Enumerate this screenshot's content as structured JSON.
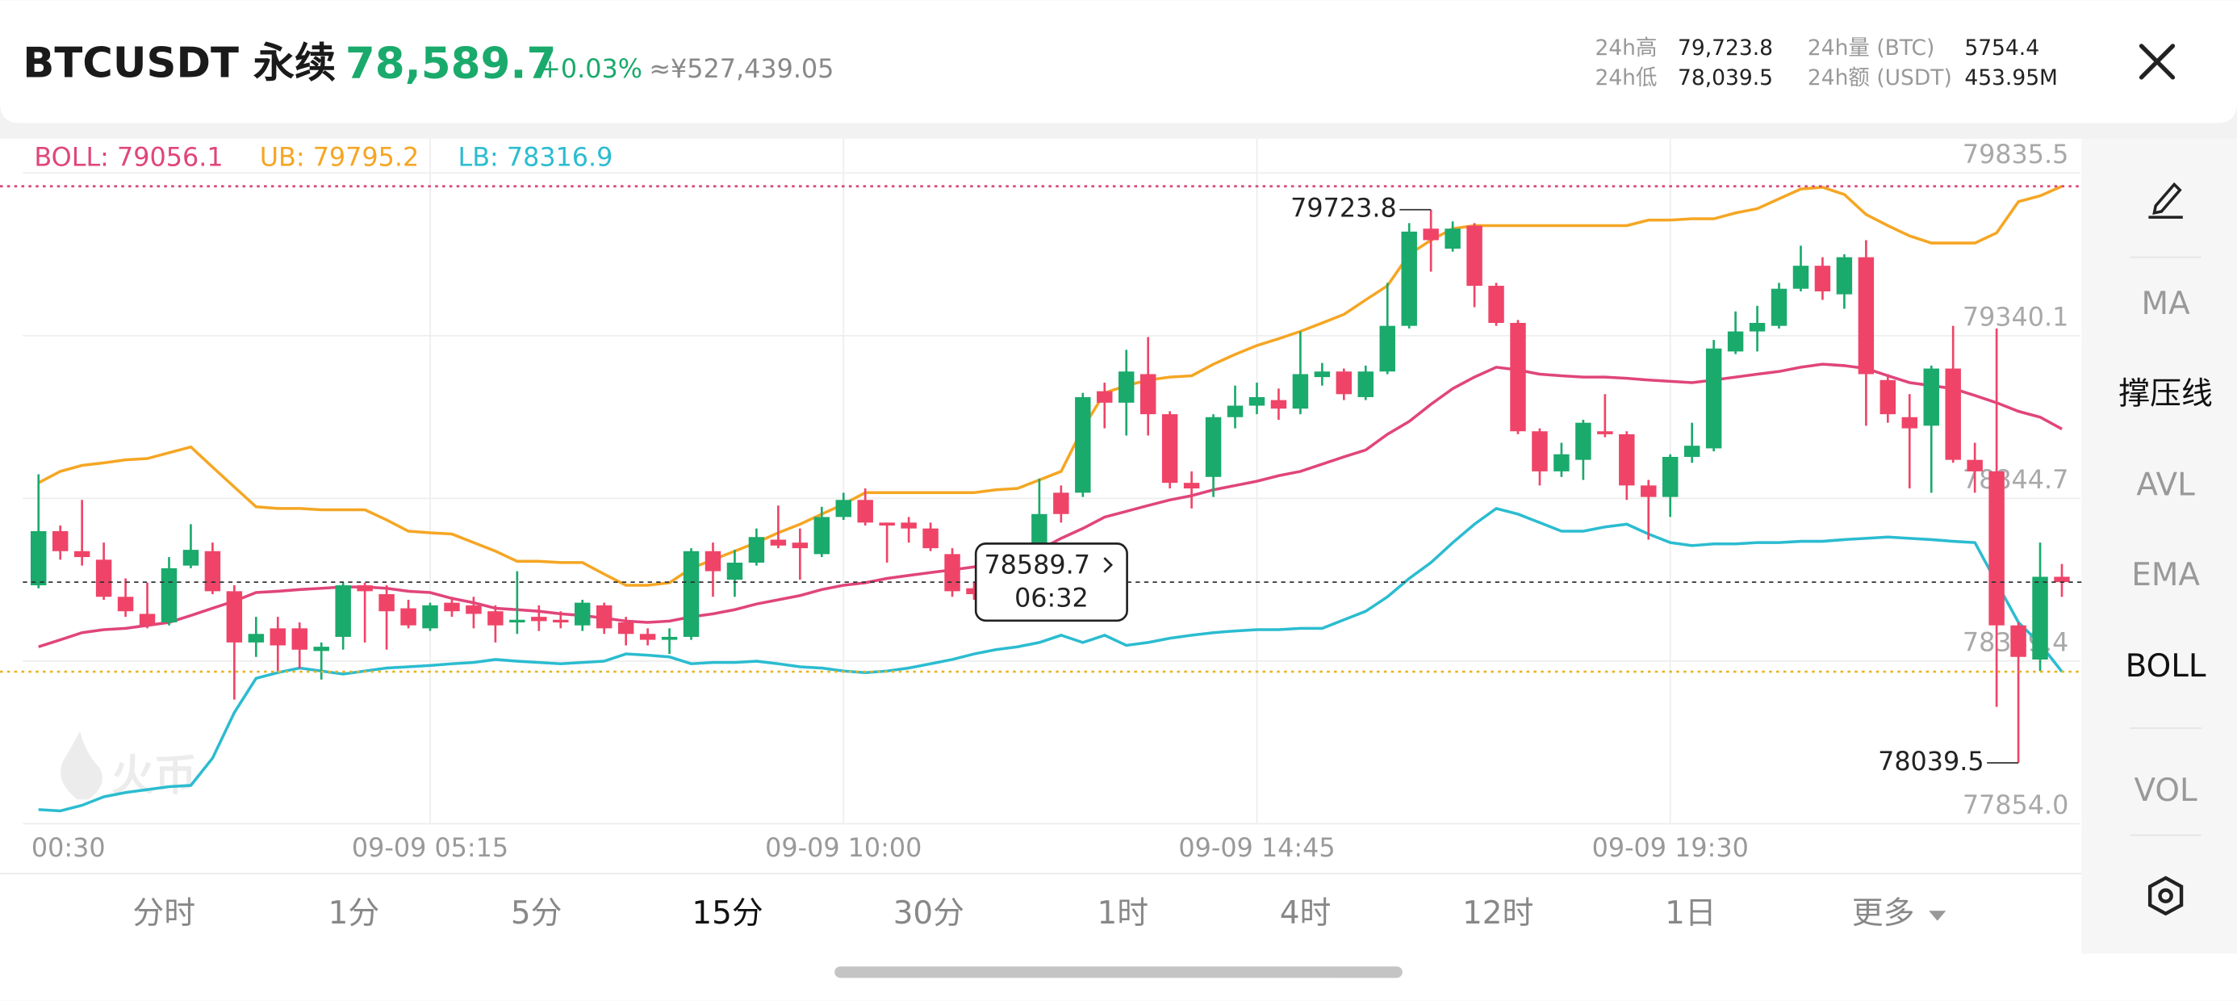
{
  "header": {
    "symbol": "BTCUSDT 永续",
    "price": "78,589.7",
    "change": "+0.03%",
    "cny": "≈¥527,439.05",
    "stats": [
      {
        "label": "24h高",
        "value": "79,723.8"
      },
      {
        "label": "24h低",
        "value": "78,039.5"
      },
      {
        "label": "24h量 (BTC)",
        "value": "5754.4"
      },
      {
        "label": "24h额 (USDT)",
        "value": "453.95M"
      }
    ]
  },
  "chart_data": {
    "type": "candlestick",
    "watermark": "火币",
    "up_color": "#1aaa6c",
    "down_color": "#ef4468",
    "ylim": [
      77854,
      79835.5
    ],
    "yticks": [
      {
        "value": 77854,
        "label": "77854.0"
      },
      78349.4,
      78844.7,
      79340.1,
      79835.5
    ],
    "grid": true,
    "time_labels": [
      "00:30",
      "09-09 05:15",
      "09-09 10:00",
      "09-09 14:45",
      "09-09 19:30"
    ],
    "countdown": "06:32",
    "open": [
      78580,
      78745,
      78684,
      78658,
      78545,
      78493,
      78467,
      78640,
      78684,
      78562,
      78406,
      78449,
      78449,
      78380,
      78423,
      78580,
      78553,
      78510,
      78449,
      78527,
      78519,
      78501,
      78467,
      78484,
      78475,
      78458,
      78519,
      78467,
      78432,
      78414,
      78423,
      78684,
      78597,
      78649,
      78719,
      78710,
      78675,
      78788,
      78840,
      78771,
      78771,
      78753,
      78675,
      78571,
      78553,
      78601,
      78666,
      78862,
      78862,
      79171,
      79136,
      79223,
      79101,
      78892,
      78910,
      79092,
      79127,
      79144,
      79118,
      79214,
      79231,
      79153,
      79231,
      79370,
      79666,
      79605,
      79675,
      79492,
      79379,
      79049,
      78927,
      78962,
      79049,
      79040,
      78884,
      78849,
      78971,
      78997,
      79292,
      79353,
      79370,
      79483,
      79553,
      79466,
      79579,
      79205,
      79092,
      79066,
      79240,
      78962,
      78927,
      78458,
      78354,
      78606
    ],
    "high": [
      78918,
      78762,
      78840,
      78710,
      78601,
      78588,
      78666,
      78766,
      78710,
      78580,
      78484,
      78484,
      78467,
      78406,
      78588,
      78588,
      78580,
      78536,
      78527,
      78545,
      78545,
      78519,
      78623,
      78519,
      78501,
      78536,
      78527,
      78484,
      78449,
      78449,
      78693,
      78710,
      78688,
      78753,
      78823,
      78753,
      78819,
      78862,
      78875,
      78771,
      78788,
      78771,
      78693,
      78588,
      78588,
      78645,
      78905,
      78884,
      79166,
      79197,
      79297,
      79336,
      79110,
      78927,
      79101,
      79188,
      79197,
      79179,
      79353,
      79257,
      79240,
      79249,
      79501,
      79683,
      79723.8,
      79688,
      79683,
      79501,
      79388,
      79058,
      79014,
      79084,
      79162,
      79049,
      78901,
      78979,
      79075,
      79327,
      79414,
      79431,
      79501,
      79614,
      79579,
      79588,
      79631,
      79223,
      79162,
      79249,
      79370,
      79014,
      79362,
      78467,
      78710,
      78645
    ],
    "low": [
      78571,
      78658,
      78640,
      78536,
      78484,
      78449,
      78458,
      78632,
      78553,
      78232,
      78362,
      78319,
      78327,
      78293,
      78384,
      78406,
      78384,
      78449,
      78441,
      78484,
      78449,
      78406,
      78432,
      78441,
      78449,
      78441,
      78432,
      78397,
      78397,
      78371,
      78414,
      78545,
      78545,
      78640,
      78693,
      78597,
      78666,
      78779,
      78762,
      78649,
      78710,
      78684,
      78545,
      78536,
      78545,
      78588,
      78658,
      78771,
      78849,
      79058,
      79036,
      79036,
      78875,
      78814,
      78849,
      79058,
      79101,
      79084,
      79101,
      79188,
      79144,
      79144,
      79223,
      79362,
      79535,
      79596,
      79427,
      79370,
      79040,
      78884,
      78910,
      78901,
      79031,
      78840,
      78719,
      78788,
      78953,
      78988,
      79284,
      79292,
      79362,
      79475,
      79449,
      79422,
      79066,
      79075,
      78875,
      78862,
      78953,
      78862,
      78210,
      78039.5,
      78319,
      78545
    ],
    "close": [
      78745,
      78684,
      78666,
      78545,
      78501,
      78458,
      78632,
      78688,
      78562,
      78406,
      78432,
      78397,
      78384,
      78393,
      78580,
      78562,
      78501,
      78458,
      78519,
      78501,
      78493,
      78458,
      78475,
      78471,
      78467,
      78527,
      78449,
      78432,
      78414,
      78423,
      78684,
      78623,
      78649,
      78727,
      78701,
      78693,
      78788,
      78840,
      78771,
      78762,
      78753,
      78693,
      78562,
      78553,
      78588,
      78645,
      78797,
      78797,
      79153,
      79136,
      79231,
      79101,
      78892,
      78875,
      79092,
      79127,
      79153,
      79118,
      79223,
      79231,
      79162,
      79231,
      79370,
      79657,
      79631,
      79666,
      79492,
      79379,
      79049,
      78927,
      78979,
      79075,
      79040,
      78884,
      78849,
      78971,
      79005,
      79301,
      79353,
      79379,
      79483,
      79553,
      79475,
      79579,
      79223,
      79101,
      79058,
      79240,
      78962,
      78927,
      78458,
      78362,
      78606,
      78589.7
    ],
    "series": [
      {
        "label": "BOLL: 79056.1",
        "color": "#e0457b",
        "values": [
          78393,
          78414,
          78436,
          78445,
          78449,
          78458,
          78467,
          78488,
          78510,
          78532,
          78558,
          78562,
          78567,
          78571,
          78575,
          78575,
          78571,
          78562,
          78558,
          78540,
          78527,
          78510,
          78506,
          78501,
          78493,
          78488,
          78480,
          78471,
          78467,
          78471,
          78484,
          78493,
          78506,
          78523,
          78536,
          78549,
          78567,
          78580,
          78588,
          78601,
          78610,
          78619,
          78627,
          78636,
          78653,
          78671,
          78688,
          78723,
          78753,
          78788,
          78805,
          78823,
          78840,
          78853,
          78871,
          78884,
          78897,
          78914,
          78927,
          78949,
          78971,
          78992,
          79040,
          79079,
          79131,
          79179,
          79214,
          79244,
          79236,
          79223,
          79218,
          79214,
          79214,
          79210,
          79205,
          79201,
          79197,
          79205,
          79214,
          79223,
          79231,
          79244,
          79253,
          79249,
          79240,
          79218,
          79197,
          79188,
          79179,
          79158,
          79136,
          79110,
          79092,
          79056
        ]
      },
      {
        "label": "UB: 79795.2",
        "color": "#f5a623",
        "values": [
          78892,
          78927,
          78945,
          78953,
          78962,
          78966,
          78984,
          79001,
          78940,
          78879,
          78819,
          78814,
          78814,
          78810,
          78810,
          78810,
          78779,
          78745,
          78740,
          78736,
          78710,
          78684,
          78653,
          78653,
          78649,
          78649,
          78614,
          78580,
          78580,
          78588,
          78632,
          78658,
          78684,
          78710,
          78740,
          78766,
          78797,
          78827,
          78862,
          78862,
          78862,
          78862,
          78862,
          78862,
          78871,
          78875,
          78901,
          78927,
          79058,
          79166,
          79188,
          79205,
          79214,
          79218,
          79253,
          79283,
          79310,
          79331,
          79353,
          79379,
          79405,
          79449,
          79492,
          79588,
          79631,
          79666,
          79675,
          79675,
          79675,
          79675,
          79675,
          79675,
          79675,
          79675,
          79692,
          79692,
          79696,
          79696,
          79714,
          79727,
          79757,
          79787,
          79792,
          79770,
          79709,
          79675,
          79644,
          79622,
          79622,
          79622,
          79653,
          79748,
          79766,
          79795
        ]
      },
      {
        "label": "LB: 78316.9",
        "color": "#2bbcd0",
        "values": [
          77897,
          77893,
          77910,
          77936,
          77949,
          77958,
          77967,
          77971,
          78054,
          78193,
          78297,
          78314,
          78328,
          78319,
          78310,
          78319,
          78328,
          78332,
          78336,
          78341,
          78345,
          78354,
          78349,
          78345,
          78341,
          78345,
          78349,
          78371,
          78367,
          78362,
          78341,
          78345,
          78345,
          78349,
          78341,
          78332,
          78328,
          78319,
          78314,
          78319,
          78328,
          78341,
          78354,
          78371,
          78384,
          78393,
          78406,
          78428,
          78406,
          78428,
          78397,
          78406,
          78419,
          78428,
          78436,
          78441,
          78445,
          78445,
          78449,
          78449,
          78475,
          78501,
          78545,
          78601,
          78649,
          78710,
          78766,
          78814,
          78797,
          78771,
          78745,
          78745,
          78758,
          78766,
          78736,
          78710,
          78701,
          78706,
          78706,
          78710,
          78710,
          78714,
          78714,
          78719,
          78723,
          78727,
          78723,
          78719,
          78714,
          78710,
          78588,
          78467,
          78402,
          78317
        ]
      }
    ]
  },
  "sidebar": [
    {
      "label": "MA",
      "active": false
    },
    {
      "label": "撑压线",
      "active": true
    },
    {
      "label": "AVL",
      "active": false
    },
    {
      "label": "EMA",
      "active": false
    },
    {
      "label": "BOLL",
      "active": true
    },
    {
      "label": "VOL",
      "active": false
    }
  ],
  "tabs": [
    {
      "label": "分时",
      "active": false
    },
    {
      "label": "1分",
      "active": false
    },
    {
      "label": "5分",
      "active": false
    },
    {
      "label": "15分",
      "active": true
    },
    {
      "label": "30分",
      "active": false
    },
    {
      "label": "1时",
      "active": false
    },
    {
      "label": "4时",
      "active": false
    },
    {
      "label": "12时",
      "active": false
    },
    {
      "label": "1日",
      "active": false
    },
    {
      "label": "更多",
      "active": false
    }
  ]
}
